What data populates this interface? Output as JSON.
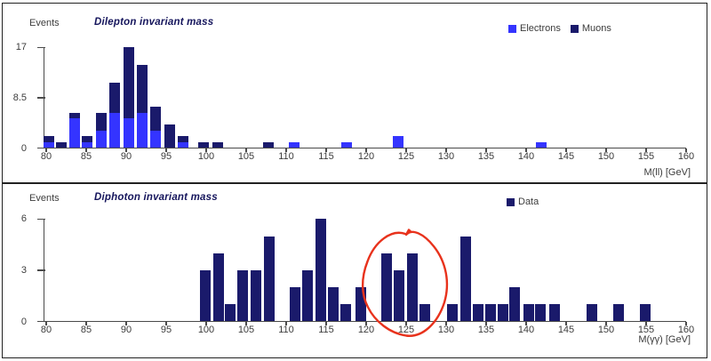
{
  "colors": {
    "electrons": "#3434ff",
    "muons": "#1a1a6b",
    "data": "#1a1a6b",
    "axis": "#4a4a4a",
    "text": "#3c3c3c",
    "title_text": "#15155c",
    "annotation_red": "#e8321c",
    "panel_border": "#222222",
    "background": "#ffffff"
  },
  "chart_data": [
    {
      "type": "bar",
      "subtype": "stacked-histogram",
      "title": "Dilepton invariant mass",
      "ylabel": "Events",
      "xlabel": "M(ll) [GeV]",
      "xlim": [
        80,
        160
      ],
      "ylim": [
        0,
        17
      ],
      "y_ticks": [
        "0",
        "8.5",
        "17"
      ],
      "x_ticks": [
        80,
        85,
        90,
        95,
        100,
        105,
        110,
        115,
        120,
        125,
        130,
        135,
        140,
        145,
        150,
        155,
        160
      ],
      "grid": false,
      "legend_position": "top-right",
      "series": [
        {
          "name": "Electrons",
          "color_key": "electrons"
        },
        {
          "name": "Muons",
          "color_key": "muons"
        }
      ],
      "bin_width_gev": 1.35,
      "bars": [
        {
          "x": 80.3,
          "electrons": 1,
          "muons": 1
        },
        {
          "x": 81.9,
          "electrons": 0,
          "muons": 1
        },
        {
          "x": 83.5,
          "electrons": 5,
          "muons": 1
        },
        {
          "x": 85.1,
          "electrons": 1,
          "muons": 1
        },
        {
          "x": 86.9,
          "electrons": 3,
          "muons": 3
        },
        {
          "x": 88.6,
          "electrons": 6,
          "muons": 5
        },
        {
          "x": 90.3,
          "electrons": 5,
          "muons": 12
        },
        {
          "x": 92.0,
          "electrons": 6,
          "muons": 8
        },
        {
          "x": 93.7,
          "electrons": 3,
          "muons": 4
        },
        {
          "x": 95.4,
          "electrons": 0,
          "muons": 4
        },
        {
          "x": 97.1,
          "electrons": 1,
          "muons": 1
        },
        {
          "x": 99.7,
          "electrons": 0,
          "muons": 1
        },
        {
          "x": 101.4,
          "electrons": 0,
          "muons": 1
        },
        {
          "x": 107.8,
          "electrons": 0,
          "muons": 1
        },
        {
          "x": 111.0,
          "electrons": 1,
          "muons": 0
        },
        {
          "x": 117.6,
          "electrons": 1,
          "muons": 0
        },
        {
          "x": 124.0,
          "electrons": 2,
          "muons": 0
        },
        {
          "x": 141.9,
          "electrons": 1,
          "muons": 0
        }
      ]
    },
    {
      "type": "bar",
      "subtype": "histogram",
      "title": "Diphoton invariant mass",
      "ylabel": "Events",
      "xlabel": "M(γγ) [GeV]",
      "xlim": [
        80,
        160
      ],
      "ylim": [
        0,
        6
      ],
      "y_ticks": [
        "0",
        "3",
        "6"
      ],
      "x_ticks": [
        80,
        85,
        90,
        95,
        100,
        105,
        110,
        115,
        120,
        125,
        130,
        135,
        140,
        145,
        150,
        155,
        160
      ],
      "grid": false,
      "legend_position": "top-right",
      "series": [
        {
          "name": "Data",
          "color_key": "data"
        }
      ],
      "bin_width_gev": 1.35,
      "bars": [
        {
          "x": 99.9,
          "count": 3
        },
        {
          "x": 101.5,
          "count": 4
        },
        {
          "x": 103.0,
          "count": 1
        },
        {
          "x": 104.6,
          "count": 3
        },
        {
          "x": 106.2,
          "count": 3
        },
        {
          "x": 107.9,
          "count": 5
        },
        {
          "x": 111.1,
          "count": 2
        },
        {
          "x": 112.7,
          "count": 3
        },
        {
          "x": 114.3,
          "count": 6
        },
        {
          "x": 115.9,
          "count": 2
        },
        {
          "x": 117.4,
          "count": 1
        },
        {
          "x": 119.3,
          "count": 2
        },
        {
          "x": 122.6,
          "count": 4
        },
        {
          "x": 124.1,
          "count": 3
        },
        {
          "x": 125.8,
          "count": 4
        },
        {
          "x": 127.3,
          "count": 1
        },
        {
          "x": 130.8,
          "count": 1
        },
        {
          "x": 132.4,
          "count": 5
        },
        {
          "x": 134.0,
          "count": 1
        },
        {
          "x": 135.5,
          "count": 1
        },
        {
          "x": 137.1,
          "count": 1
        },
        {
          "x": 138.6,
          "count": 2
        },
        {
          "x": 140.3,
          "count": 1
        },
        {
          "x": 141.8,
          "count": 1
        },
        {
          "x": 143.5,
          "count": 1
        },
        {
          "x": 148.2,
          "count": 1
        },
        {
          "x": 151.6,
          "count": 1
        },
        {
          "x": 154.9,
          "count": 1
        }
      ],
      "annotation": {
        "type": "hand-drawn-circle",
        "color_key": "annotation_red",
        "x_range_gev": [
          119.5,
          130.3
        ]
      }
    }
  ]
}
